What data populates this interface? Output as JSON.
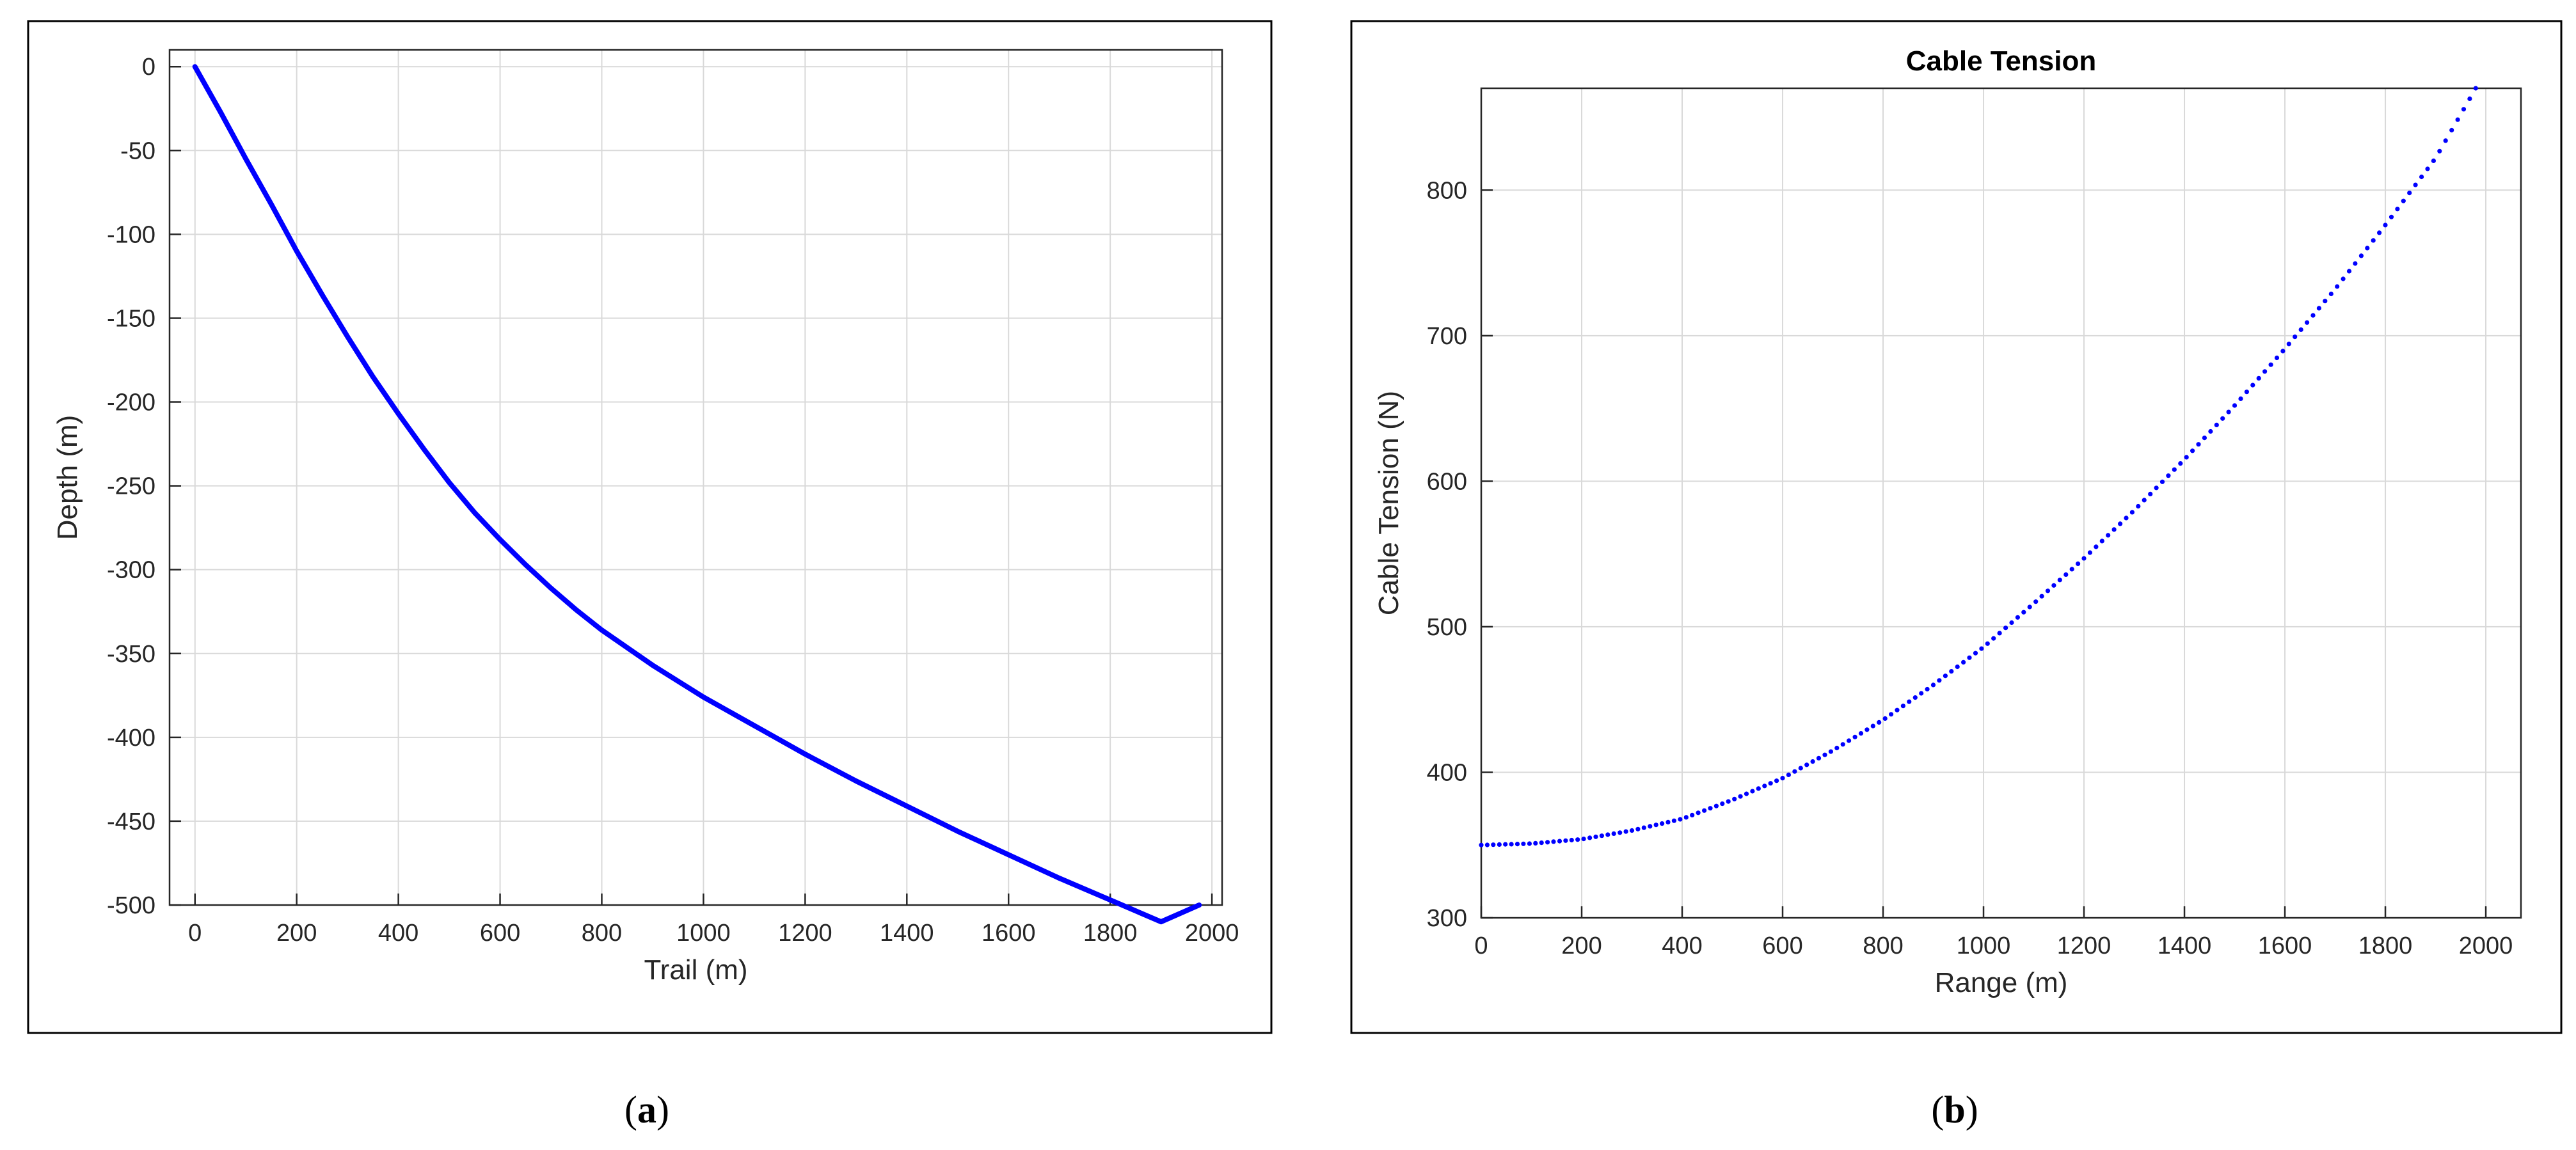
{
  "panels": [
    {
      "caption_open": "(",
      "caption_letter": "a",
      "caption_close": ")"
    },
    {
      "caption_open": "(",
      "caption_letter": "b",
      "caption_close": ")"
    }
  ],
  "colors": {
    "line": "#0000ff",
    "grid": "#d9d9d9",
    "axes": "#262626",
    "frame": "#000000"
  },
  "chart_data": [
    {
      "type": "line",
      "title": "",
      "xlabel": "Trail (m)",
      "ylabel": "Depth (m)",
      "xlim": [
        -50,
        2020
      ],
      "ylim": [
        -500,
        10
      ],
      "xticks": [
        0,
        200,
        400,
        600,
        800,
        1000,
        1200,
        1400,
        1600,
        1800,
        2000
      ],
      "yticks": [
        0,
        -50,
        -100,
        -150,
        -200,
        -250,
        -300,
        -350,
        -400,
        -450,
        -500
      ],
      "grid": true,
      "series": [
        {
          "x": [
            0,
            50,
            100,
            150,
            200,
            250,
            300,
            350,
            400,
            450,
            500,
            550,
            600,
            650,
            700,
            750,
            800,
            900,
            1000,
            1100,
            1200,
            1300,
            1400,
            1500,
            1600,
            1700,
            1800,
            1900,
            1975
          ],
          "y": [
            0,
            -27,
            -55,
            -82,
            -110,
            -136,
            -161,
            -185,
            -207,
            -228,
            -248,
            -266,
            -282,
            -297,
            -311,
            -324,
            -336,
            -357,
            -376,
            -393,
            -410,
            -426,
            -441,
            -456,
            -470,
            -484,
            -497,
            -510,
            -500
          ]
        }
      ]
    },
    {
      "type": "scatter",
      "title": "Cable Tension",
      "xlabel": "Range (m)",
      "ylabel": "Cable Tension (N)",
      "xlim": [
        0,
        2070
      ],
      "ylim": [
        300,
        870
      ],
      "xticks": [
        0,
        200,
        400,
        600,
        800,
        1000,
        1200,
        1400,
        1600,
        1800,
        2000
      ],
      "yticks": [
        300,
        400,
        500,
        600,
        700,
        800
      ],
      "grid": true,
      "series": [
        {
          "x": [
            0,
            100,
            200,
            300,
            400,
            500,
            600,
            700,
            800,
            900,
            1000,
            1100,
            1200,
            1300,
            1400,
            1500,
            1600,
            1700,
            1800,
            1900,
            1980
          ],
          "y": [
            350,
            351,
            354,
            360,
            368,
            381,
            396,
            415,
            436,
            460,
            486,
            516,
            547,
            580,
            615,
            652,
            691,
            732,
            776,
            822,
            870
          ]
        }
      ]
    }
  ]
}
